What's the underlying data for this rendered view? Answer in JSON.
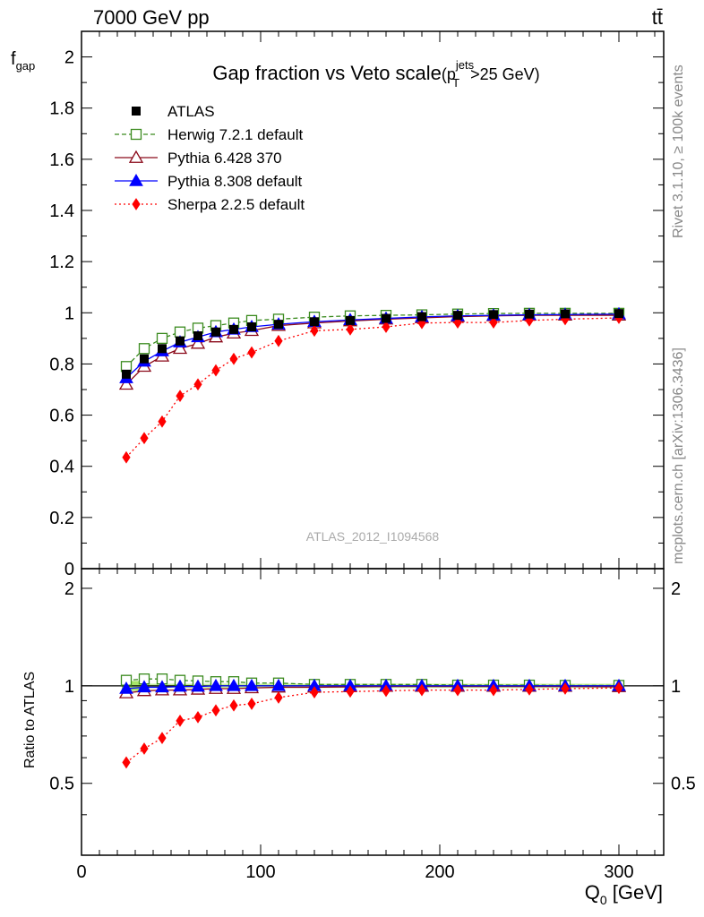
{
  "header": {
    "left": "7000 GeV pp",
    "right": "tt̄",
    "title_main": "Gap fraction vs Veto scale",
    "title_paren_open": "(p",
    "title_sup": "jets",
    "title_sub": "T",
    "title_paren_close": ">25 GeV)"
  },
  "side_labels": {
    "rivet": "Rivet 3.1.10, ≥ 100k events",
    "mcplots": "mcplots.cern.ch [arXiv:1306.3436]"
  },
  "watermark": "ATLAS_2012_I1094568",
  "axes": {
    "ylabel_main": "f",
    "ylabel_main_sub": "gap",
    "ylabel_ratio": "Ratio to ATLAS",
    "xlabel": "Q",
    "xlabel_sub": "0",
    "xlabel_unit": " [GeV]"
  },
  "legend": [
    {
      "label": "ATLAS",
      "series": "data"
    },
    {
      "label": "Herwig 7.2.1 default",
      "series": "herwig"
    },
    {
      "label": "Pythia 6.428 370",
      "series": "pythia6"
    },
    {
      "label": "Pythia 8.308 default",
      "series": "pythia8"
    },
    {
      "label": "Sherpa 2.2.5 default",
      "series": "sherpa"
    }
  ],
  "colors": {
    "data": "#000000",
    "herwig": "#3a8a1e",
    "pythia6": "#8b0a1a",
    "pythia8": "#0000ff",
    "sherpa": "#ff0000",
    "band": "#9de35a"
  },
  "chart_data": {
    "type": "line",
    "x": [
      25,
      35,
      45,
      55,
      65,
      75,
      85,
      95,
      110,
      130,
      150,
      170,
      190,
      210,
      230,
      250,
      270,
      300
    ],
    "xlim": [
      0,
      325
    ],
    "xticks": [
      "0",
      "100",
      "200",
      "300"
    ],
    "main": {
      "ylim": [
        0,
        2.1
      ],
      "yticks": [
        "0",
        "0.2",
        "0.4",
        "0.6",
        "0.8",
        "1",
        "1.2",
        "1.4",
        "1.6",
        "1.8",
        "2"
      ],
      "series": [
        {
          "key": "data",
          "name": "ATLAS",
          "values": [
            0.76,
            0.82,
            0.86,
            0.89,
            0.91,
            0.925,
            0.935,
            0.945,
            0.955,
            0.965,
            0.97,
            0.978,
            0.985,
            0.99,
            0.993,
            0.995,
            0.996,
            0.997
          ]
        },
        {
          "key": "herwig",
          "name": "Herwig 7.2.1 default",
          "values": [
            0.79,
            0.86,
            0.9,
            0.925,
            0.94,
            0.95,
            0.96,
            0.97,
            0.975,
            0.983,
            0.988,
            0.99,
            0.992,
            0.995,
            0.997,
            0.998,
            0.998,
            0.998
          ]
        },
        {
          "key": "pythia6",
          "name": "Pythia 6.428 370",
          "values": [
            0.72,
            0.79,
            0.83,
            0.86,
            0.88,
            0.905,
            0.92,
            0.93,
            0.95,
            0.96,
            0.968,
            0.975,
            0.98,
            0.985,
            0.988,
            0.99,
            0.99,
            0.99
          ]
        },
        {
          "key": "pythia8",
          "name": "Pythia 8.308 default",
          "values": [
            0.745,
            0.81,
            0.85,
            0.885,
            0.905,
            0.925,
            0.935,
            0.945,
            0.955,
            0.965,
            0.972,
            0.978,
            0.984,
            0.988,
            0.99,
            0.992,
            0.993,
            0.995
          ]
        },
        {
          "key": "sherpa",
          "name": "Sherpa 2.2.5 default",
          "values": [
            0.435,
            0.51,
            0.575,
            0.675,
            0.72,
            0.775,
            0.82,
            0.845,
            0.89,
            0.93,
            0.935,
            0.945,
            0.96,
            0.962,
            0.962,
            0.97,
            0.975,
            0.98
          ]
        }
      ]
    },
    "ratio": {
      "ylim": [
        0.3,
        2.3
      ],
      "yticks": [
        "0.5",
        "1",
        "2"
      ],
      "series": [
        {
          "key": "herwig",
          "values": [
            1.04,
            1.05,
            1.05,
            1.04,
            1.035,
            1.03,
            1.03,
            1.02,
            1.02,
            1.01,
            1.01,
            1.01,
            1.01,
            1.005,
            1.005,
            1.005,
            1.003,
            1.003
          ]
        },
        {
          "key": "pythia6",
          "values": [
            0.95,
            0.965,
            0.97,
            0.97,
            0.975,
            0.98,
            0.98,
            0.985,
            0.99,
            0.99,
            0.993,
            0.995,
            0.995,
            0.995,
            0.995,
            0.995,
            0.995,
            0.993
          ]
        },
        {
          "key": "pythia8",
          "values": [
            0.98,
            0.99,
            0.99,
            0.995,
            0.995,
            1.0,
            1.0,
            1.0,
            1.0,
            1.0,
            1.0,
            1.0,
            1.0,
            1.0,
            1.0,
            1.0,
            1.0,
            1.0
          ]
        },
        {
          "key": "sherpa",
          "values": [
            0.58,
            0.64,
            0.69,
            0.78,
            0.8,
            0.84,
            0.87,
            0.88,
            0.92,
            0.955,
            0.96,
            0.965,
            0.97,
            0.97,
            0.97,
            0.975,
            0.98,
            0.985
          ]
        }
      ]
    }
  }
}
